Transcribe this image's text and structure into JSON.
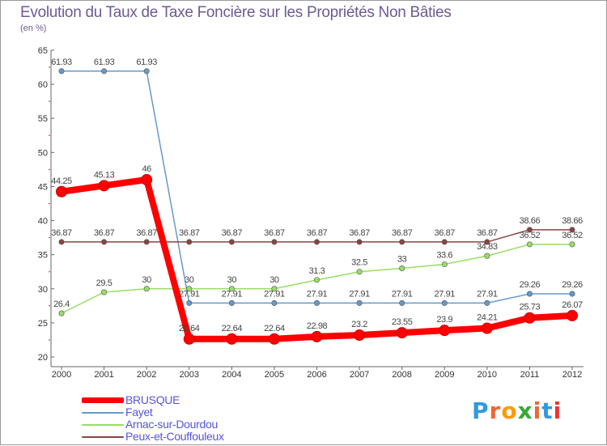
{
  "header": {
    "title": "Evolution du Taux de Taxe Foncière sur les Propriétés Non Bâties",
    "unit": "(en %)"
  },
  "chart_data": {
    "type": "line",
    "title": "Evolution du Taux de Taxe Foncière sur les Propriétés Non Bâties",
    "ylabel": "(en %)",
    "xlabel": "",
    "ylim": [
      20,
      65
    ],
    "yticks": [
      20,
      25,
      30,
      35,
      40,
      45,
      50,
      55,
      60,
      65
    ],
    "grid": false,
    "legend_position": "bottom-left",
    "categories": [
      "2000",
      "2001",
      "2002",
      "2003",
      "2004",
      "2005",
      "2006",
      "2007",
      "2008",
      "2009",
      "2010",
      "2011",
      "2012"
    ],
    "series": [
      {
        "name": "BRUSQUE",
        "color": "#ff0000",
        "emphasis": true,
        "values": [
          44.25,
          45.13,
          46,
          22.64,
          22.64,
          22.64,
          22.98,
          23.2,
          23.55,
          23.9,
          24.21,
          25.73,
          26.07
        ]
      },
      {
        "name": "Fayet",
        "color": "#6699cc",
        "emphasis": false,
        "values": [
          61.93,
          61.93,
          61.93,
          27.91,
          27.91,
          27.91,
          27.91,
          27.91,
          27.91,
          27.91,
          27.91,
          29.26,
          29.26
        ]
      },
      {
        "name": "Arnac-sur-Dourdou",
        "color": "#99dd66",
        "emphasis": false,
        "values": [
          26.4,
          29.5,
          30,
          30,
          30,
          30,
          31.3,
          32.5,
          33,
          33.6,
          34.83,
          36.52,
          36.52
        ]
      },
      {
        "name": "Peux-et-Couffouleux",
        "color": "#884444",
        "emphasis": false,
        "values": [
          36.87,
          36.87,
          36.87,
          36.87,
          36.87,
          36.87,
          36.87,
          36.87,
          36.87,
          36.87,
          36.87,
          38.66,
          38.66
        ]
      }
    ]
  },
  "legend": {
    "items": [
      {
        "label": "BRUSQUE"
      },
      {
        "label": "Fayet"
      },
      {
        "label": "Arnac-sur-Dourdou"
      },
      {
        "label": "Peux-et-Couffouleux"
      }
    ]
  },
  "logo": {
    "text": "Proxiti",
    "letter_colors": [
      "#3399dd",
      "#ee6633",
      "#ff9900",
      "#33aa33",
      "#ee6633",
      "#3399dd",
      "#ee3333"
    ]
  }
}
